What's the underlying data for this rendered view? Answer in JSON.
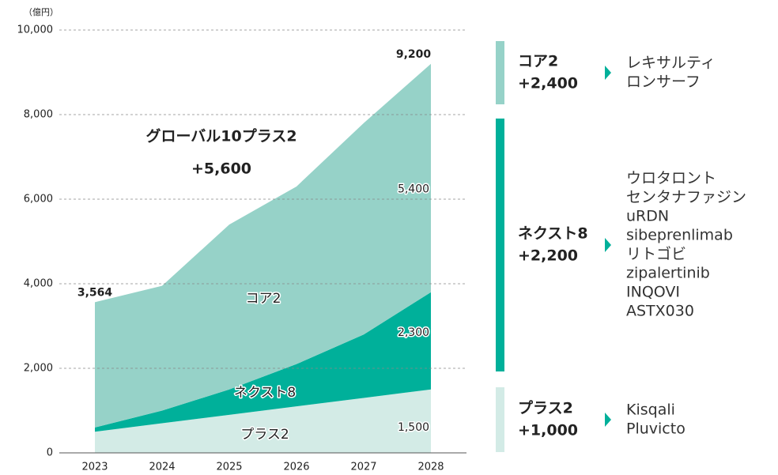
{
  "chart_data": {
    "type": "area",
    "unit_label": "（億円）",
    "categories": [
      "2023",
      "2024",
      "2025",
      "2026",
      "2027",
      "2028"
    ],
    "stacked": true,
    "grid": true,
    "ylim": [
      0,
      10000
    ],
    "yticks": [
      {
        "value": 0,
        "label": "0"
      },
      {
        "value": 2000,
        "label": "2,000"
      },
      {
        "value": 4000,
        "label": "4,000"
      },
      {
        "value": 6000,
        "label": "6,000"
      },
      {
        "value": 8000,
        "label": "8,000"
      },
      {
        "value": 10000,
        "label": "10,000"
      }
    ],
    "series": [
      {
        "name": "プラス2",
        "color": "#d3ebe6",
        "values": [
          500,
          700,
          900,
          1100,
          1300,
          1500
        ],
        "value_labels": [
          null,
          null,
          null,
          null,
          null,
          "1,500"
        ]
      },
      {
        "name": "ネクスト8",
        "color": "#00b09a",
        "values": [
          100,
          300,
          600,
          1000,
          1500,
          2300
        ],
        "value_labels": [
          null,
          null,
          null,
          null,
          null,
          "2,300"
        ]
      },
      {
        "name": "コア2",
        "color": "#96d2c8",
        "values": [
          2964,
          2950,
          3900,
          4200,
          5000,
          5400
        ],
        "value_labels": [
          null,
          null,
          null,
          null,
          null,
          "5,400"
        ]
      }
    ],
    "total_labels": [
      {
        "value": 3564,
        "label": "3,564"
      },
      {
        "value": 9200,
        "label": "9,200"
      }
    ],
    "annotation": [
      "グローバル10プラス2",
      "+5,600"
    ]
  },
  "side_panel": [
    {
      "name": "コア2",
      "delta": "+2,400",
      "color": "#96d2c8",
      "items": [
        "レキサルティ",
        "ロンサーフ"
      ]
    },
    {
      "name": "ネクスト8",
      "delta": "+2,200",
      "color": "#00b09a",
      "items": [
        "ウロタロント",
        "センタナファジン",
        "uRDN",
        "sibeprenlimab",
        "リトゴビ",
        "zipalertinib",
        "INQOVI",
        "ASTX030"
      ]
    },
    {
      "name": "プラス2",
      "delta": "+1,000",
      "color": "#d3ebe6",
      "items": [
        "Kisqali",
        "Pluvicto"
      ]
    }
  ]
}
